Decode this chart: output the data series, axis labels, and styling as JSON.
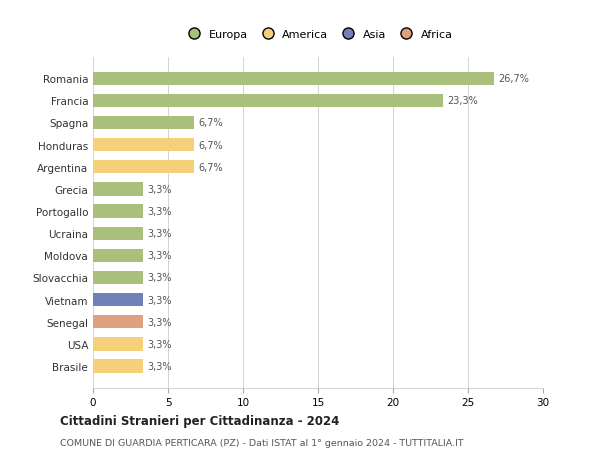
{
  "countries": [
    "Romania",
    "Francia",
    "Spagna",
    "Honduras",
    "Argentina",
    "Grecia",
    "Portogallo",
    "Ucraina",
    "Moldova",
    "Slovacchia",
    "Vietnam",
    "Senegal",
    "USA",
    "Brasile"
  ],
  "values": [
    26.7,
    23.3,
    6.7,
    6.7,
    6.7,
    3.3,
    3.3,
    3.3,
    3.3,
    3.3,
    3.3,
    3.3,
    3.3,
    3.3
  ],
  "labels": [
    "26,7%",
    "23,3%",
    "6,7%",
    "6,7%",
    "6,7%",
    "3,3%",
    "3,3%",
    "3,3%",
    "3,3%",
    "3,3%",
    "3,3%",
    "3,3%",
    "3,3%",
    "3,3%"
  ],
  "colors": [
    "#a8c07a",
    "#a8c07a",
    "#a8c07a",
    "#f5d07a",
    "#f5d07a",
    "#a8c07a",
    "#a8c07a",
    "#a8c07a",
    "#a8c07a",
    "#a8c07a",
    "#7080b8",
    "#e0a080",
    "#f5d07a",
    "#f5d07a"
  ],
  "legend_colors": {
    "Europa": "#a8c07a",
    "America": "#f5d07a",
    "Asia": "#7080b8",
    "Africa": "#e0a080"
  },
  "xlim": [
    0,
    30
  ],
  "xticks": [
    0,
    5,
    10,
    15,
    20,
    25,
    30
  ],
  "title": "Cittadini Stranieri per Cittadinanza - 2024",
  "subtitle": "COMUNE DI GUARDIA PERTICARA (PZ) - Dati ISTAT al 1° gennaio 2024 - TUTTITALIA.IT",
  "background_color": "#ffffff",
  "grid_color": "#cccccc",
  "bar_height": 0.6
}
